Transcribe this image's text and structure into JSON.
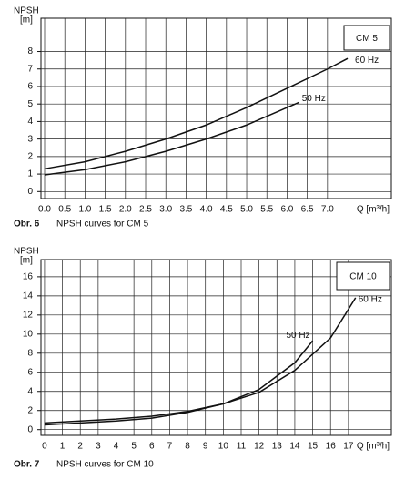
{
  "chart_data": [
    {
      "type": "line",
      "title": "CM 5",
      "y_label": "NPSH",
      "y_unit": "[m]",
      "x_label": "Q [m³/h]",
      "caption_number": "Obr. 6",
      "caption": "NPSH curves for CM 5",
      "xlim": [
        -0.09,
        8.58
      ],
      "ylim": [
        -0.4,
        9.9
      ],
      "xticks": [
        {
          "value": 0,
          "label": "0.0"
        },
        0.5,
        {
          "value": 1,
          "label": "1.0"
        },
        1.5,
        {
          "value": 2,
          "label": "2.0"
        },
        2.5,
        {
          "value": 3,
          "label": "3.0"
        },
        3.5,
        {
          "value": 4,
          "label": "4.0"
        },
        4.5,
        {
          "value": 5,
          "label": "5.0"
        },
        5.5,
        {
          "value": 6,
          "label": "6.0"
        },
        6.5,
        {
          "value": 7,
          "label": "7.0"
        }
      ],
      "yticks": [
        0,
        1,
        2,
        3,
        4,
        5,
        6,
        7,
        8
      ],
      "grid": true,
      "series": [
        {
          "name": "60 Hz",
          "color": "#111111",
          "x": [
            0,
            1,
            2,
            3,
            4,
            5,
            6,
            7,
            7.5
          ],
          "values": [
            1.3,
            1.7,
            2.3,
            3.0,
            3.8,
            4.8,
            5.9,
            7.0,
            7.6
          ]
        },
        {
          "name": "50 Hz",
          "color": "#111111",
          "x": [
            0,
            1,
            2,
            3,
            4,
            5,
            6,
            6.3
          ],
          "values": [
            0.95,
            1.25,
            1.7,
            2.3,
            3.0,
            3.8,
            4.8,
            5.1
          ]
        }
      ]
    },
    {
      "type": "line",
      "title": "CM 10",
      "y_label": "NPSH",
      "y_unit": "[m]",
      "x_label": "Q [m³/h]",
      "caption_number": "Obr. 7",
      "caption": "NPSH curves for CM 10",
      "xlim": [
        -0.2,
        19.4
      ],
      "ylim": [
        -0.6,
        17.8
      ],
      "xticks": [
        0,
        1,
        2,
        3,
        4,
        5,
        6,
        7,
        8,
        9,
        10,
        11,
        12,
        13,
        14,
        15,
        16,
        17
      ],
      "yticks": [
        0,
        2,
        4,
        6,
        8,
        10,
        12,
        14,
        16
      ],
      "grid": true,
      "series": [
        {
          "name": "60 Hz",
          "color": "#111111",
          "x": [
            0,
            2,
            4,
            6,
            8,
            10,
            12,
            14,
            16,
            17.4
          ],
          "values": [
            0.7,
            0.9,
            1.1,
            1.4,
            1.9,
            2.7,
            3.9,
            6.2,
            9.6,
            13.8
          ]
        },
        {
          "name": "50 Hz",
          "color": "#111111",
          "x": [
            0,
            2,
            4,
            6,
            8,
            10,
            12,
            14,
            15
          ],
          "values": [
            0.5,
            0.7,
            0.9,
            1.2,
            1.8,
            2.7,
            4.2,
            7.0,
            9.3
          ]
        }
      ]
    }
  ]
}
